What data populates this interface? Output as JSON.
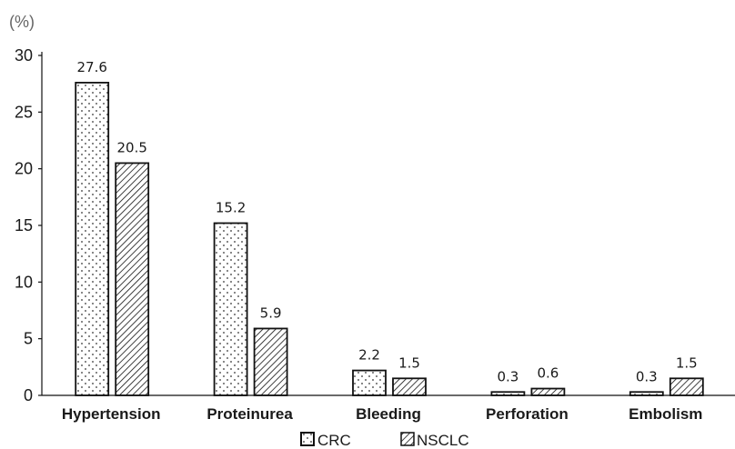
{
  "chart_data": {
    "type": "bar",
    "unit_label": "(%)",
    "categories": [
      "Hypertension",
      "Proteinurea",
      "Bleeding",
      "Perforation",
      "Embolism"
    ],
    "series": [
      {
        "name": "CRC",
        "values": [
          27.6,
          15.2,
          2.2,
          0.3,
          0.3
        ],
        "pattern": "dots",
        "data_labels": [
          "27.6",
          "15.2",
          "2.2",
          "0.3",
          "0.3"
        ]
      },
      {
        "name": "NSCLC",
        "values": [
          20.5,
          5.9,
          1.5,
          0.6,
          1.5
        ],
        "pattern": "diagonal-hatch",
        "data_labels": [
          "20.5",
          "5.9",
          "1.5",
          "0.6",
          "1.5"
        ]
      }
    ],
    "yticks": [
      "0",
      "5",
      "10",
      "15",
      "20",
      "25",
      "30"
    ],
    "ylim": [
      0,
      30
    ],
    "grid": false,
    "legend_position": "bottom",
    "colors": {
      "stroke": "#111111",
      "background": "#ffffff",
      "unit_label": "#666666"
    }
  }
}
